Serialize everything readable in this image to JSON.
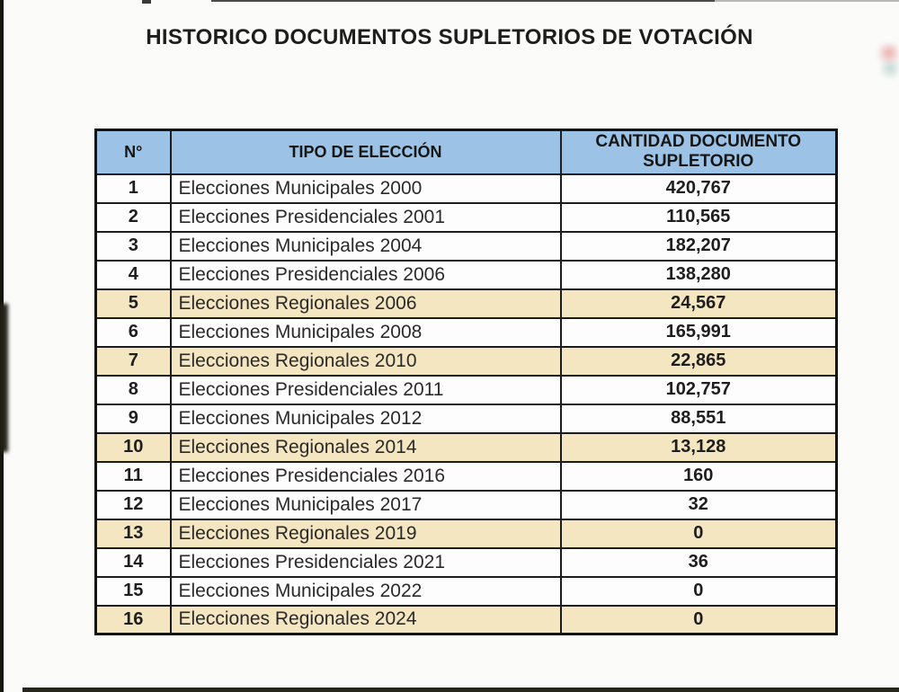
{
  "page": {
    "title": "HISTORICO DOCUMENTOS SUPLETORIOS DE VOTACIÓN"
  },
  "table": {
    "headers": {
      "numero": "N°",
      "tipo": "TIPO DE ELECCIÓN",
      "cantidad": "CANTIDAD DOCUMENTO\nSUPLETORIO"
    },
    "rows": [
      {
        "n": "1",
        "tipo": "Elecciones Municipales 2000",
        "cantidad": "420,767",
        "highlight": false
      },
      {
        "n": "2",
        "tipo": "Elecciones Presidenciales 2001",
        "cantidad": "110,565",
        "highlight": false
      },
      {
        "n": "3",
        "tipo": "Elecciones Municipales 2004",
        "cantidad": "182,207",
        "highlight": false
      },
      {
        "n": "4",
        "tipo": "Elecciones Presidenciales 2006",
        "cantidad": "138,280",
        "highlight": false
      },
      {
        "n": "5",
        "tipo": "Elecciones Regionales 2006",
        "cantidad": "24,567",
        "highlight": true
      },
      {
        "n": "6",
        "tipo": "Elecciones Municipales 2008",
        "cantidad": "165,991",
        "highlight": false
      },
      {
        "n": "7",
        "tipo": "Elecciones Regionales 2010",
        "cantidad": "22,865",
        "highlight": true
      },
      {
        "n": "8",
        "tipo": "Elecciones Presidenciales 2011",
        "cantidad": "102,757",
        "highlight": false
      },
      {
        "n": "9",
        "tipo": "Elecciones Municipales 2012",
        "cantidad": "88,551",
        "highlight": false
      },
      {
        "n": "10",
        "tipo": "Elecciones Regionales 2014",
        "cantidad": "13,128",
        "highlight": true
      },
      {
        "n": "11",
        "tipo": "Elecciones Presidenciales 2016",
        "cantidad": "160",
        "highlight": false
      },
      {
        "n": "12",
        "tipo": "Elecciones Municipales 2017",
        "cantidad": "32",
        "highlight": false
      },
      {
        "n": "13",
        "tipo": "Elecciones Regionales 2019",
        "cantidad": "0",
        "highlight": true
      },
      {
        "n": "14",
        "tipo": "Elecciones Presidenciales 2021",
        "cantidad": "36",
        "highlight": false
      },
      {
        "n": "15",
        "tipo": "Elecciones Municipales 2022",
        "cantidad": "0",
        "highlight": false
      },
      {
        "n": "16",
        "tipo": "Elecciones Regionales 2024",
        "cantidad": "0",
        "highlight": true
      }
    ],
    "colors": {
      "header_bg": "#9cc3e5",
      "highlight_bg": "#f4e6c1",
      "row_bg": "#fdfdfd",
      "border": "#1c1c1c"
    }
  }
}
